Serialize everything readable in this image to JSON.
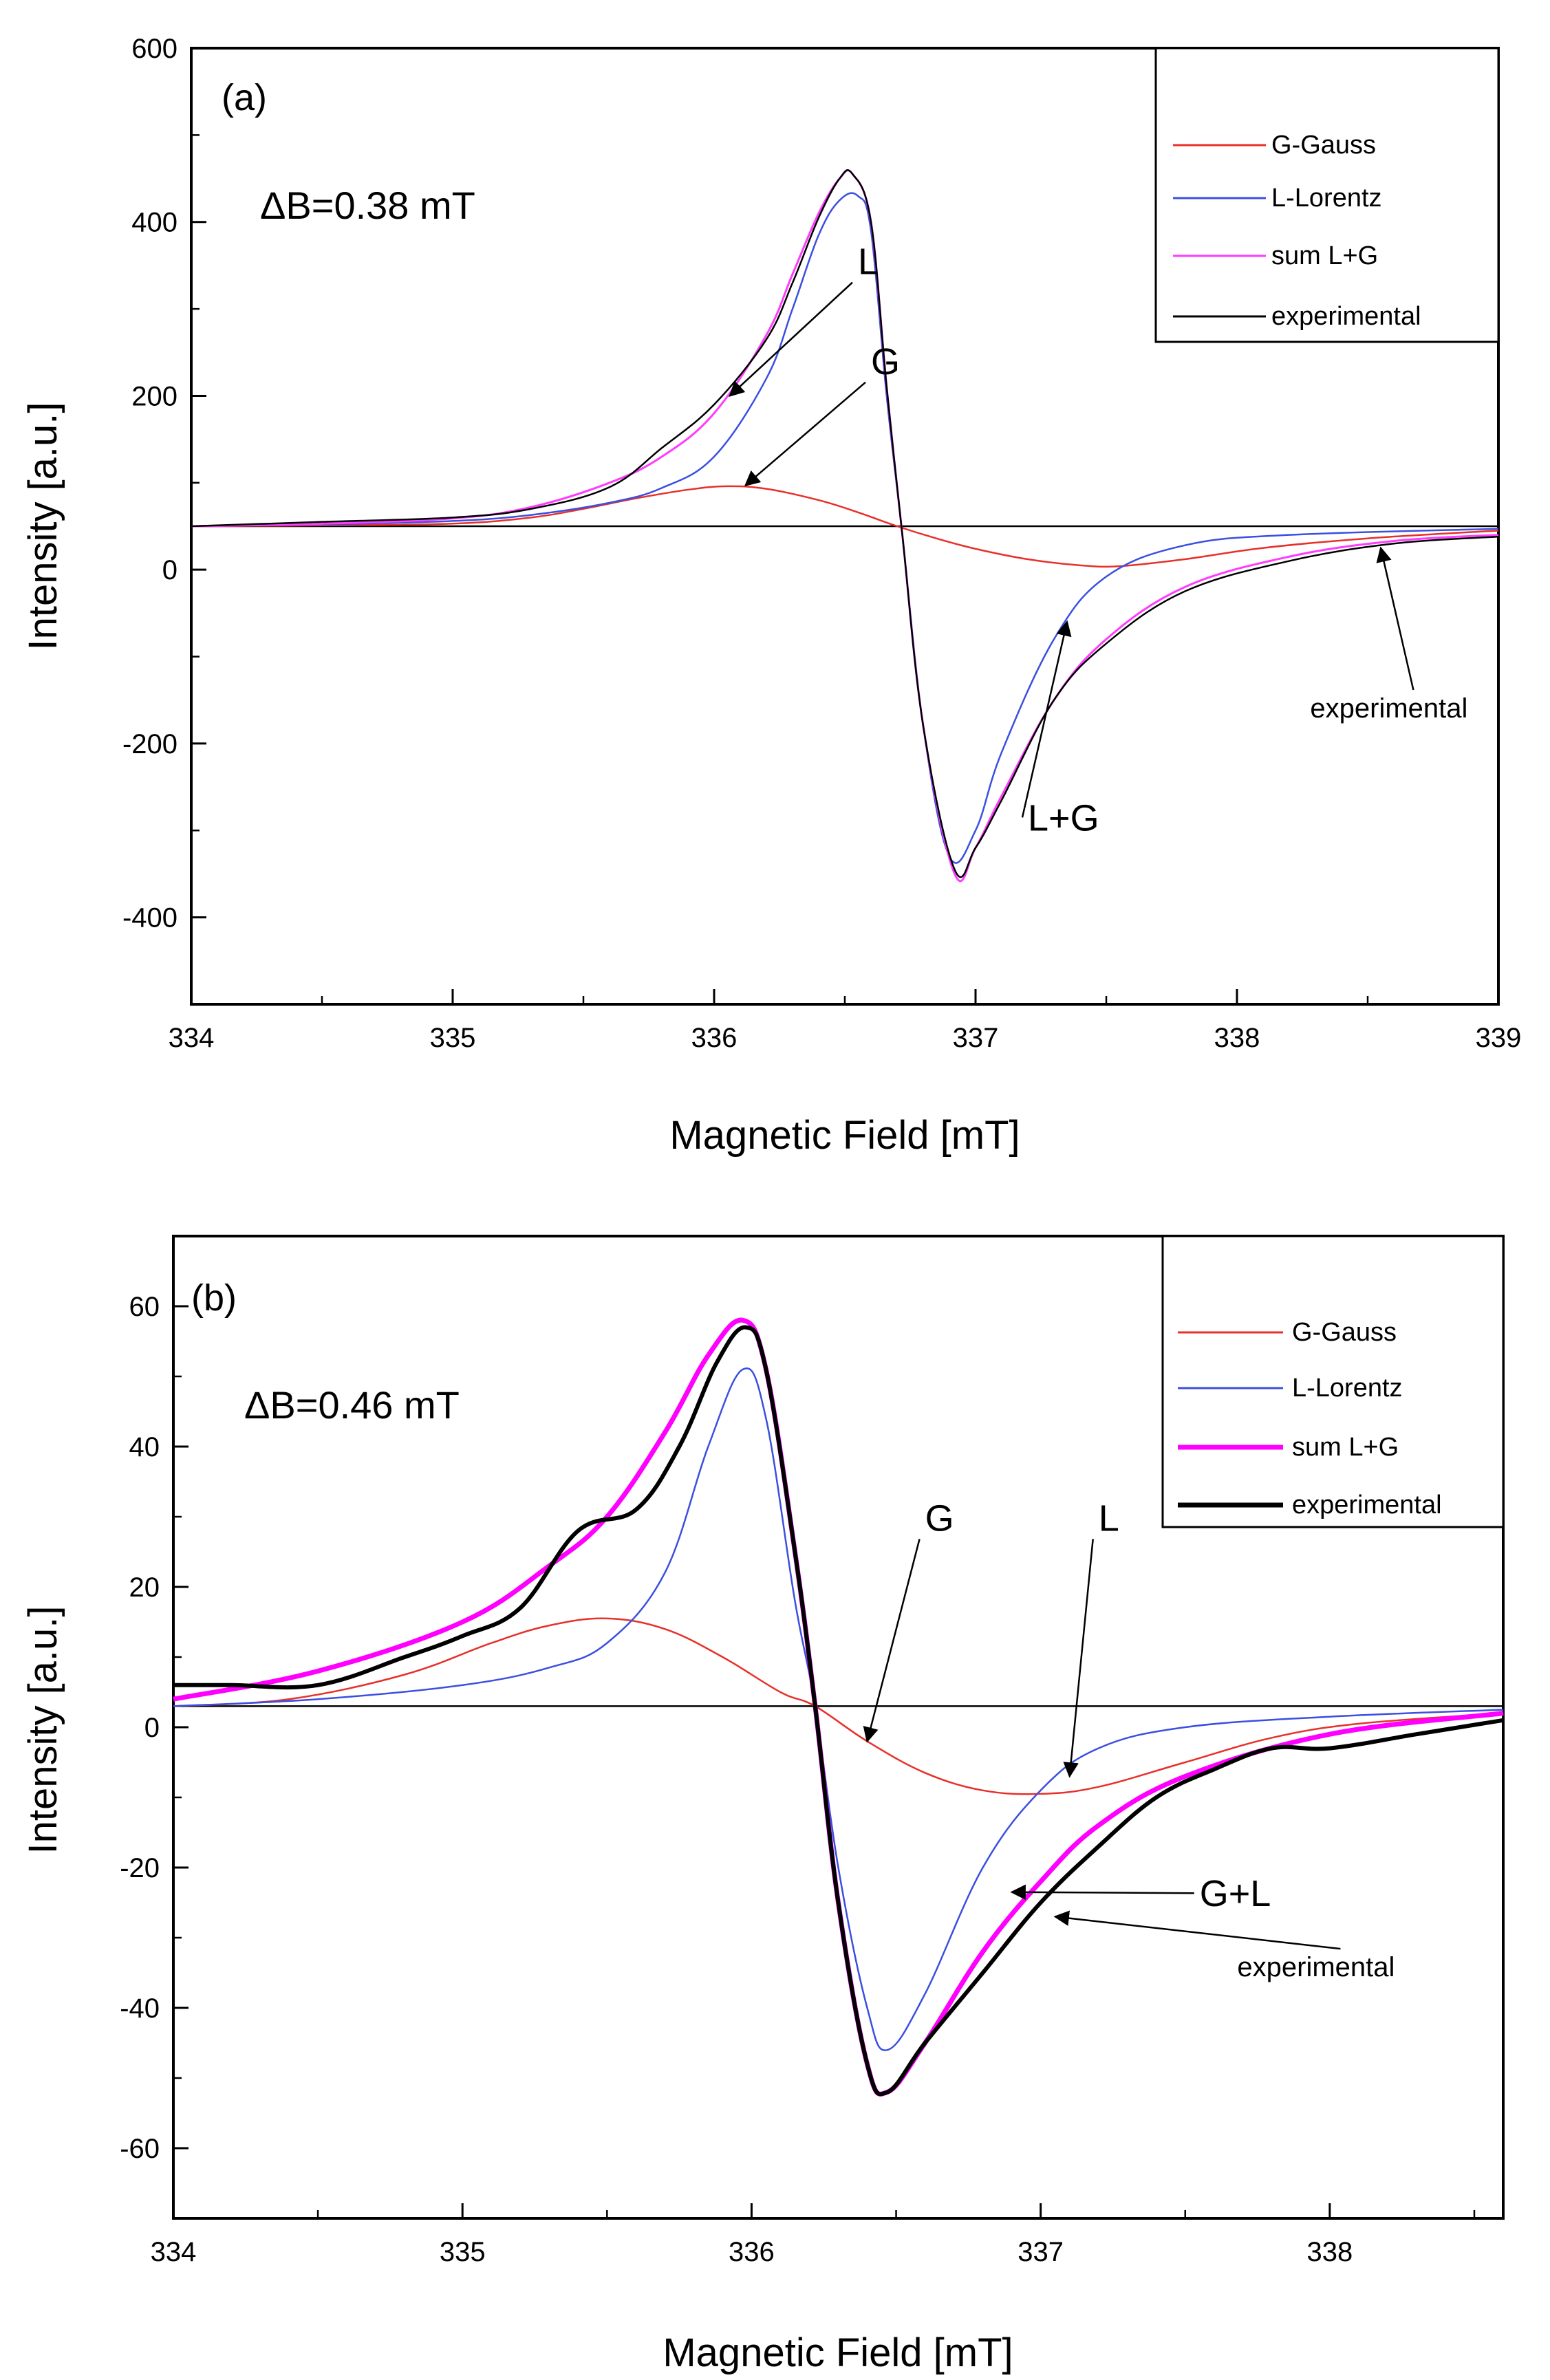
{
  "chart_data": [
    {
      "type": "line",
      "panel_label": "(a)",
      "annotation": "ΔB=0.38 mT",
      "xlabel": "Magnetic Field [mT]",
      "ylabel": "Intensity [a.u.]",
      "xlim": [
        334,
        339
      ],
      "ylim": [
        -500,
        600
      ],
      "xticks": [
        334,
        335,
        336,
        337,
        338,
        339
      ],
      "yticks": [
        -400,
        -200,
        0,
        200,
        400,
        600
      ],
      "baseline": 50,
      "grid": false,
      "legend_position": "top-right",
      "legend": [
        "G-Gauss",
        "L-Lorentz",
        "sum L+G",
        "experimental"
      ],
      "series": [
        {
          "name": "G-Gauss",
          "color": "#e8302a",
          "x": [
            334,
            334.5,
            335,
            335.3,
            335.5,
            335.7,
            335.9,
            336.05,
            336.2,
            336.4,
            336.55,
            336.7,
            336.85,
            337,
            337.2,
            337.4,
            337.55,
            337.8,
            338.1,
            338.5,
            339
          ],
          "y": [
            50,
            51,
            53,
            60,
            70,
            82,
            92,
            96,
            93,
            80,
            66,
            50,
            36,
            24,
            12,
            5,
            4,
            12,
            25,
            36,
            45
          ]
        },
        {
          "name": "L-Lorentz",
          "color": "#3b4fe0",
          "x": [
            334,
            334.5,
            335,
            335.3,
            335.6,
            335.8,
            336,
            336.2,
            336.3,
            336.4,
            336.48,
            336.55,
            336.6,
            336.66,
            336.72,
            336.8,
            336.9,
            337,
            337.1,
            337.3,
            337.5,
            337.8,
            338.2,
            339
          ],
          "y": [
            50,
            52,
            56,
            63,
            77,
            94,
            130,
            220,
            300,
            385,
            425,
            430,
            390,
            200,
            40,
            -180,
            -330,
            -300,
            -210,
            -80,
            -8,
            28,
            40,
            47
          ]
        },
        {
          "name": "sum L+G",
          "color": "#ff3cff",
          "x": [
            334,
            334.5,
            335,
            335.3,
            335.6,
            335.8,
            336,
            336.2,
            336.3,
            336.4,
            336.48,
            336.53,
            336.6,
            336.66,
            336.72,
            336.8,
            336.92,
            337,
            337.1,
            337.3,
            337.5,
            337.8,
            338.2,
            338.6,
            339
          ],
          "y": [
            50,
            53,
            59,
            72,
            100,
            130,
            180,
            270,
            340,
            410,
            450,
            455,
            400,
            210,
            40,
            -180,
            -350,
            -320,
            -260,
            -150,
            -80,
            -20,
            15,
            33,
            40
          ]
        },
        {
          "name": "experimental",
          "color": "#000000",
          "x": [
            334,
            334.5,
            335,
            335.3,
            335.6,
            335.8,
            336,
            336.2,
            336.3,
            336.4,
            336.48,
            336.53,
            336.6,
            336.66,
            336.72,
            336.8,
            336.92,
            337,
            337.1,
            337.3,
            337.5,
            337.8,
            338.2,
            338.6,
            339
          ],
          "y": [
            50,
            55,
            60,
            70,
            95,
            140,
            190,
            265,
            330,
            405,
            450,
            455,
            400,
            210,
            40,
            -180,
            -345,
            -320,
            -265,
            -150,
            -85,
            -25,
            10,
            30,
            38
          ]
        }
      ],
      "annotations": [
        {
          "text": "L",
          "x": 336.55,
          "y": 340,
          "arrow_to": [
            336.06,
            200
          ]
        },
        {
          "text": "G",
          "x": 336.6,
          "y": 225,
          "arrow_to": [
            336.12,
            97
          ]
        },
        {
          "text": "L+G",
          "x": 337.2,
          "y": -300,
          "arrow_to": [
            337.35,
            -60
          ]
        },
        {
          "text": "experimental",
          "x": 338.28,
          "y": -170,
          "arrow_to": [
            338.55,
            25
          ]
        }
      ]
    },
    {
      "type": "line",
      "panel_label": "(b)",
      "annotation": "ΔB=0.46 mT",
      "xlabel": "Magnetic Field [mT]",
      "ylabel": "Intensity [a.u.]",
      "xlim": [
        334,
        338.6
      ],
      "ylim": [
        -70,
        70
      ],
      "xticks": [
        334,
        335,
        336,
        337,
        338
      ],
      "yticks": [
        -60,
        -40,
        -20,
        0,
        20,
        40,
        60
      ],
      "baseline": 3,
      "grid": false,
      "legend_position": "top-right",
      "legend": [
        "G-Gauss",
        "L-Lorentz",
        "sum L+G",
        "experimental"
      ],
      "series": [
        {
          "name": "G-Gauss",
          "color": "#e8302a",
          "x": [
            334,
            334.4,
            334.8,
            335.1,
            335.3,
            335.5,
            335.7,
            335.9,
            336.1,
            336.22,
            336.4,
            336.6,
            336.8,
            337,
            337.2,
            337.5,
            337.8,
            338.1,
            338.6
          ],
          "y": [
            3,
            4,
            7.5,
            12,
            14.5,
            15.5,
            14,
            10,
            5,
            3,
            -2,
            -6.5,
            -9,
            -9.5,
            -8.5,
            -5,
            -1.5,
            0.5,
            2
          ]
        },
        {
          "name": "L-Lorentz",
          "color": "#3b4fe0",
          "x": [
            334,
            334.5,
            335,
            335.3,
            335.5,
            335.7,
            335.85,
            335.97,
            336.05,
            336.15,
            336.22,
            336.3,
            336.4,
            336.47,
            336.6,
            336.8,
            337,
            337.2,
            337.5,
            338,
            338.6
          ],
          "y": [
            3,
            4,
            6,
            8.5,
            12,
            22,
            40,
            51,
            44,
            18,
            3,
            -20,
            -40,
            -46,
            -38,
            -20,
            -9,
            -3,
            0,
            1.5,
            2.5
          ]
        },
        {
          "name": "sum L+G",
          "color": "#ff00ff",
          "x": [
            334,
            334.5,
            335,
            335.3,
            335.5,
            335.7,
            335.85,
            335.97,
            336.05,
            336.15,
            336.22,
            336.3,
            336.4,
            336.47,
            336.6,
            336.8,
            337,
            337.2,
            337.5,
            338,
            338.6
          ],
          "y": [
            4,
            8,
            15,
            23,
            30,
            42,
            53,
            58,
            51,
            25,
            3,
            -25,
            -48,
            -52,
            -45,
            -32,
            -22,
            -14,
            -7,
            -1,
            2
          ]
        },
        {
          "name": "experimental",
          "color": "#000000",
          "x": [
            334,
            334.2,
            334.5,
            334.8,
            335,
            335.2,
            335.4,
            335.6,
            335.75,
            335.88,
            335.98,
            336.05,
            336.15,
            336.22,
            336.3,
            336.4,
            336.47,
            336.6,
            336.8,
            337,
            337.2,
            337.4,
            337.6,
            337.8,
            338,
            338.3,
            338.6
          ],
          "y": [
            6,
            6,
            6,
            10,
            13,
            17,
            28,
            31,
            40,
            52,
            57,
            51,
            25,
            3,
            -25,
            -48,
            -52,
            -45,
            -35,
            -25,
            -17,
            -10,
            -6,
            -3,
            -3,
            -1,
            1
          ]
        }
      ],
      "annotations": [
        {
          "text": "G",
          "x": 336.6,
          "y": 28,
          "arrow_to": [
            336.4,
            -2
          ]
        },
        {
          "text": "L",
          "x": 337.2,
          "y": 28,
          "arrow_to": [
            337.1,
            -7
          ]
        },
        {
          "text": "G+L",
          "x": 337.55,
          "y": -25.5,
          "arrow_to": [
            336.9,
            -23.5
          ]
        },
        {
          "text": "experimental",
          "x": 337.68,
          "y": -35.5,
          "arrow_to": [
            337.05,
            -27
          ]
        }
      ]
    }
  ]
}
